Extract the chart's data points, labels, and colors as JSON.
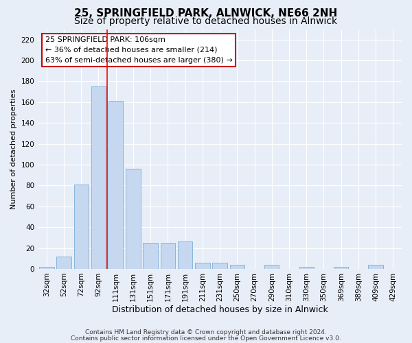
{
  "title1": "25, SPRINGFIELD PARK, ALNWICK, NE66 2NH",
  "title2": "Size of property relative to detached houses in Alnwick",
  "xlabel": "Distribution of detached houses by size in Alnwick",
  "ylabel": "Number of detached properties",
  "footer1": "Contains HM Land Registry data © Crown copyright and database right 2024.",
  "footer2": "Contains public sector information licensed under the Open Government Licence v3.0.",
  "annotation_line1": "25 SPRINGFIELD PARK: 106sqm",
  "annotation_line2": "← 36% of detached houses are smaller (214)",
  "annotation_line3": "63% of semi-detached houses are larger (380) →",
  "bar_labels": [
    "32sqm",
    "52sqm",
    "72sqm",
    "92sqm",
    "111sqm",
    "131sqm",
    "151sqm",
    "171sqm",
    "191sqm",
    "211sqm",
    "231sqm",
    "250sqm",
    "270sqm",
    "290sqm",
    "310sqm",
    "330sqm",
    "350sqm",
    "369sqm",
    "389sqm",
    "409sqm",
    "429sqm"
  ],
  "bar_values": [
    2,
    12,
    81,
    175,
    161,
    96,
    25,
    25,
    26,
    6,
    6,
    4,
    0,
    4,
    0,
    2,
    0,
    2,
    0,
    4,
    0
  ],
  "bar_color": "#c5d8f0",
  "bar_edge_color": "#7aaed6",
  "red_line_x": 3.5,
  "ylim": [
    0,
    230
  ],
  "yticks": [
    0,
    20,
    40,
    60,
    80,
    100,
    120,
    140,
    160,
    180,
    200,
    220
  ],
  "bg_color": "#e8eef8",
  "plot_bg_color": "#e8eef8",
  "grid_color": "#ffffff",
  "annotation_box_color": "#ffffff",
  "annotation_box_edge": "#cc0000",
  "title1_fontsize": 11,
  "title2_fontsize": 10,
  "xlabel_fontsize": 9,
  "ylabel_fontsize": 8,
  "tick_fontsize": 7.5,
  "annotation_fontsize": 8,
  "footer_fontsize": 6.5
}
